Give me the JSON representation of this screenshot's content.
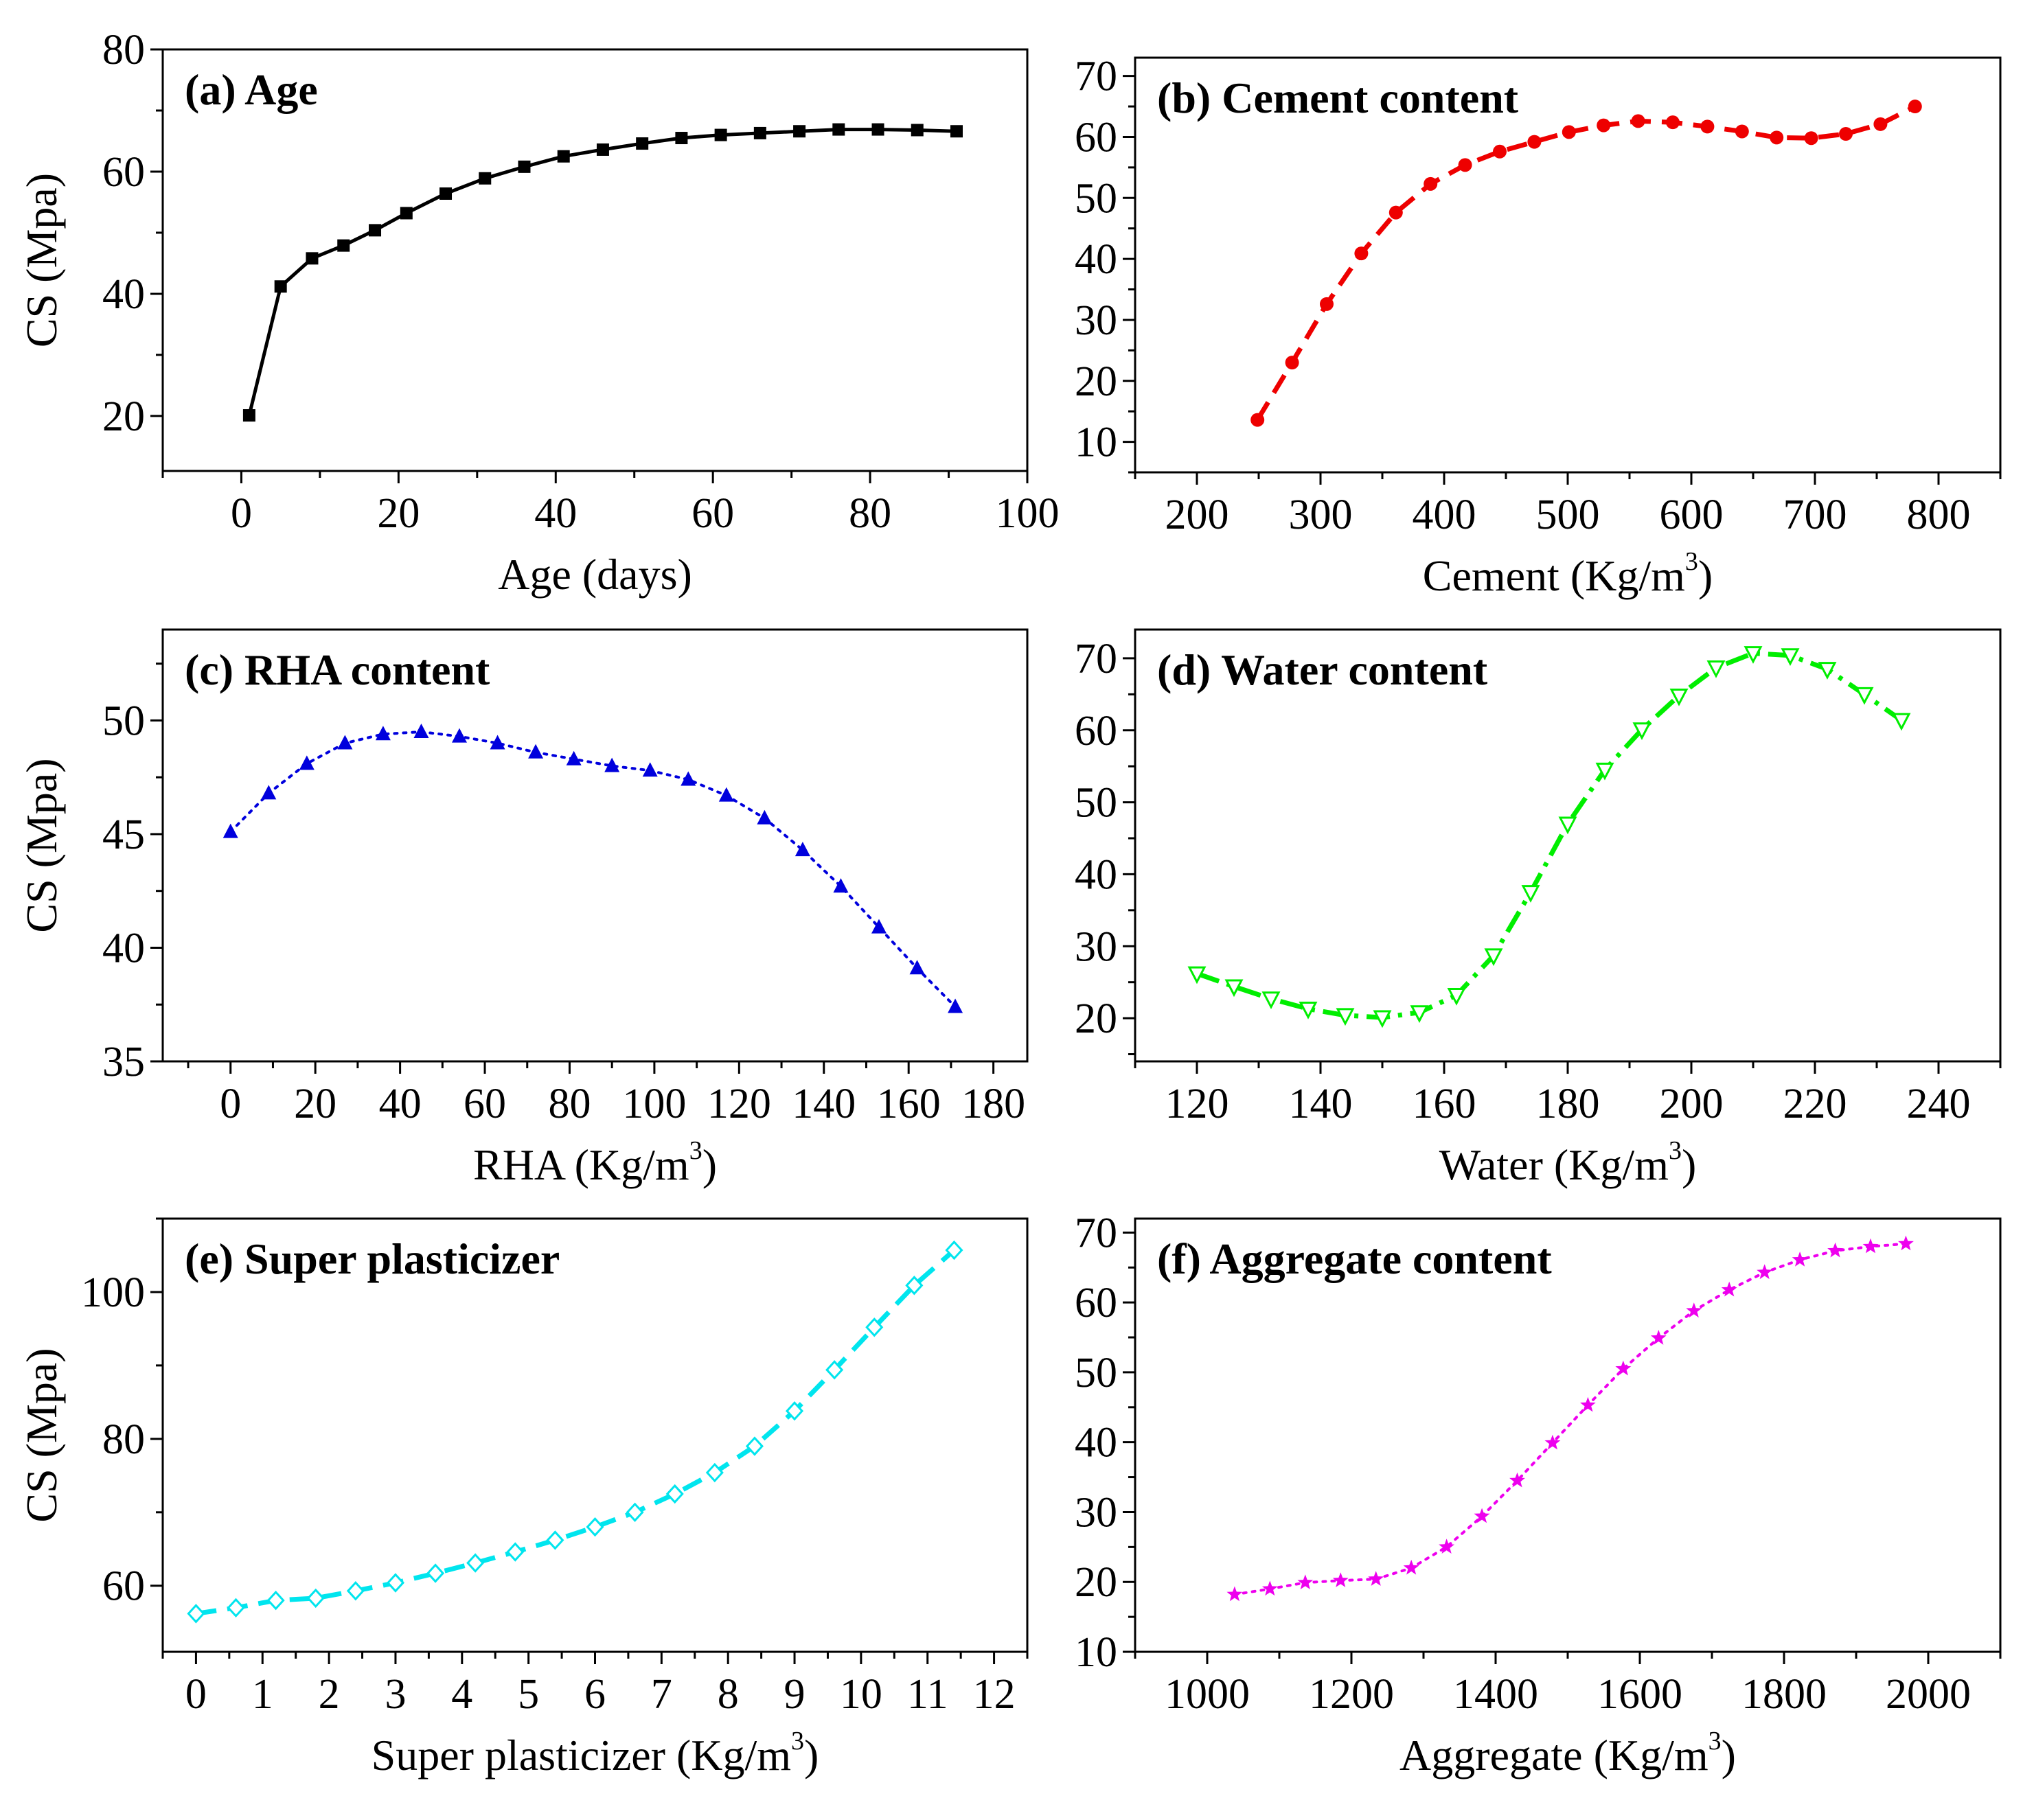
{
  "chart_data": [
    {
      "id": "a",
      "type": "line",
      "title": "(a) Age",
      "xlabel": "Age (days)",
      "xlabel_sup": "",
      "xlabel_close": "",
      "ylabel": "CS (Mpa)",
      "xlim": [
        -10,
        100
      ],
      "ylim": [
        11,
        80
      ],
      "xticks": [
        0,
        20,
        40,
        60,
        80,
        100
      ],
      "yticks": [
        20,
        40,
        60,
        80
      ],
      "series": [
        {
          "name": "Age",
          "color": "#000000",
          "marker": "square",
          "line_style": "solid",
          "x": [
            1,
            5,
            9,
            13,
            17,
            21,
            26,
            31,
            36,
            41,
            46,
            51,
            56,
            61,
            66,
            71,
            76,
            81,
            86,
            91
          ],
          "y": [
            20.1,
            41.2,
            45.8,
            47.9,
            50.4,
            53.2,
            56.4,
            58.9,
            60.8,
            62.5,
            63.6,
            64.6,
            65.5,
            66.0,
            66.3,
            66.6,
            66.9,
            66.9,
            66.8,
            66.6
          ]
        }
      ]
    },
    {
      "id": "b",
      "type": "line",
      "title": "(b) Cement content",
      "xlabel": "Cement (Kg/m",
      "xlabel_sup": "3",
      "xlabel_close": ")",
      "ylabel": "",
      "xlim": [
        150,
        850
      ],
      "ylim": [
        5,
        73
      ],
      "xticks": [
        200,
        300,
        400,
        500,
        600,
        700,
        800
      ],
      "yticks": [
        10,
        20,
        30,
        40,
        50,
        60,
        70
      ],
      "series": [
        {
          "name": "Cement",
          "color": "#ee0000",
          "marker": "circle",
          "line_style": "dash",
          "x": [
            249,
            277,
            305,
            333,
            361,
            389,
            417,
            445,
            473,
            501,
            529,
            557,
            585,
            613,
            641,
            669,
            697,
            725,
            753,
            781
          ],
          "y": [
            13.6,
            23.0,
            32.6,
            40.9,
            47.6,
            52.3,
            55.4,
            57.6,
            59.2,
            60.8,
            61.9,
            62.6,
            62.4,
            61.7,
            60.9,
            59.9,
            59.8,
            60.5,
            62.1,
            65.0
          ]
        }
      ]
    },
    {
      "id": "c",
      "type": "line",
      "title": "(c) RHA content",
      "xlabel": "RHA (Kg/m",
      "xlabel_sup": "3",
      "xlabel_close": ")",
      "ylabel": "CS (Mpa)",
      "xlim": [
        -16,
        188
      ],
      "ylim": [
        35,
        54
      ],
      "xticks": [
        0,
        20,
        40,
        60,
        80,
        100,
        120,
        140,
        160,
        180
      ],
      "yticks": [
        35,
        40,
        45,
        50
      ],
      "series": [
        {
          "name": "RHA",
          "color": "#0000dd",
          "marker": "triangle-up",
          "line_style": "dot",
          "x": [
            0,
            9,
            18,
            27,
            36,
            45,
            54,
            63,
            72,
            81,
            90,
            99,
            108,
            117,
            126,
            135,
            144,
            153,
            162,
            171
          ],
          "y": [
            45.1,
            46.8,
            48.1,
            49.0,
            49.4,
            49.5,
            49.3,
            49.0,
            48.6,
            48.3,
            48.0,
            47.8,
            47.4,
            46.7,
            45.7,
            44.3,
            42.7,
            40.9,
            39.1,
            37.4
          ]
        }
      ]
    },
    {
      "id": "d",
      "type": "line",
      "title": "(d) Water content",
      "xlabel": "Water (Kg/m",
      "xlabel_sup": "3",
      "xlabel_close": ")",
      "ylabel": "",
      "xlim": [
        110,
        250
      ],
      "ylim": [
        14,
        74
      ],
      "xticks": [
        120,
        140,
        160,
        180,
        200,
        220,
        240
      ],
      "yticks": [
        20,
        30,
        40,
        50,
        60,
        70
      ],
      "series": [
        {
          "name": "Water",
          "color": "#00ee00",
          "marker": "triangle-down-open",
          "line_style": "dashdot",
          "x": [
            120,
            126,
            132,
            138,
            144,
            150,
            156,
            162,
            168,
            174,
            180,
            186,
            192,
            198,
            204,
            210,
            216,
            222,
            228,
            234
          ],
          "y": [
            26.2,
            24.4,
            22.7,
            21.3,
            20.4,
            20.1,
            20.8,
            23.2,
            28.7,
            37.5,
            47.0,
            54.5,
            60.1,
            64.8,
            68.7,
            70.7,
            70.4,
            68.5,
            65.0,
            61.4
          ]
        }
      ]
    },
    {
      "id": "e",
      "type": "line",
      "title": "(e) Super plasticizer",
      "xlabel": "Super plasticizer (Kg/m",
      "xlabel_sup": "3",
      "xlabel_close": ")",
      "ylabel": "CS (Mpa)",
      "xlim": [
        -0.5,
        12.5
      ],
      "ylim": [
        51,
        110
      ],
      "xticks": [
        0,
        1,
        2,
        3,
        4,
        5,
        6,
        7,
        8,
        9,
        10,
        11,
        12
      ],
      "yticks": [
        60,
        80,
        100
      ],
      "series": [
        {
          "name": "Super plasticizer",
          "color": "#00e5ee",
          "marker": "diamond-open",
          "line_style": "dash",
          "x": [
            0,
            0.6,
            1.2,
            1.8,
            2.4,
            3.0,
            3.6,
            4.2,
            4.8,
            5.4,
            6.0,
            6.6,
            7.2,
            7.8,
            8.4,
            9.0,
            9.6,
            10.2,
            10.8,
            11.4
          ],
          "y": [
            56.2,
            57.0,
            58.0,
            58.3,
            59.3,
            60.4,
            61.7,
            63.1,
            64.6,
            66.2,
            68.0,
            70.0,
            72.5,
            75.4,
            79.0,
            83.8,
            89.4,
            95.2,
            100.9,
            105.7
          ]
        }
      ]
    },
    {
      "id": "f",
      "type": "line",
      "title": "(f) Aggregate content",
      "xlabel": "Aggregate (Kg/m",
      "xlabel_sup": "3",
      "xlabel_close": ")",
      "ylabel": "",
      "xlim": [
        900,
        2100
      ],
      "ylim": [
        10,
        72
      ],
      "xticks": [
        1000,
        1200,
        1400,
        1600,
        1800,
        2000
      ],
      "yticks": [
        10,
        20,
        30,
        40,
        50,
        60,
        70
      ],
      "series": [
        {
          "name": "Aggregate",
          "color": "#ee00ee",
          "marker": "star",
          "line_style": "dot",
          "x": [
            1038,
            1087,
            1136,
            1185,
            1234,
            1283,
            1332,
            1381,
            1430,
            1479,
            1528,
            1577,
            1626,
            1675,
            1724,
            1773,
            1822,
            1871,
            1920,
            1969
          ],
          "y": [
            18.2,
            19.0,
            19.9,
            20.2,
            20.4,
            22.0,
            25.0,
            29.4,
            34.5,
            39.9,
            45.3,
            50.5,
            54.9,
            58.8,
            61.8,
            64.3,
            66.1,
            67.4,
            68.0,
            68.4
          ]
        }
      ]
    }
  ]
}
